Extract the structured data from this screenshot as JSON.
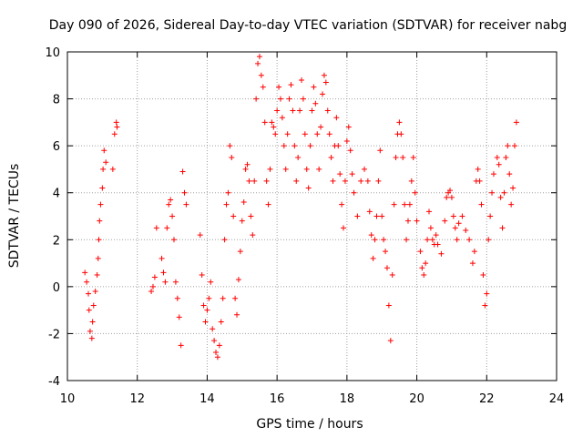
{
  "chart_data": {
    "type": "scatter",
    "title": "Day 090 of 2026, Sidereal Day-to-day VTEC variation (SDTVAR) for receiver nabg",
    "xlabel": "GPS time / hours",
    "ylabel": "SDTVAR / TECUs",
    "xlim": [
      10,
      24
    ],
    "ylim": [
      -4,
      10
    ],
    "x_ticks": [
      10,
      12,
      14,
      16,
      18,
      20,
      22,
      24
    ],
    "y_ticks": [
      -4,
      -2,
      0,
      2,
      4,
      6,
      8,
      10
    ],
    "grid": true,
    "marker": "+",
    "series": [
      {
        "name": "SDTVAR",
        "color": "#ff0000",
        "points": [
          [
            10.5,
            0.6
          ],
          [
            10.55,
            0.2
          ],
          [
            10.6,
            -0.3
          ],
          [
            10.62,
            -1.0
          ],
          [
            10.65,
            -1.9
          ],
          [
            10.7,
            -2.2
          ],
          [
            10.72,
            -1.5
          ],
          [
            10.75,
            -0.8
          ],
          [
            10.8,
            -0.2
          ],
          [
            10.85,
            0.5
          ],
          [
            10.88,
            1.2
          ],
          [
            10.9,
            2.0
          ],
          [
            10.92,
            2.8
          ],
          [
            10.95,
            3.5
          ],
          [
            11.0,
            4.2
          ],
          [
            11.02,
            5.0
          ],
          [
            11.05,
            5.8
          ],
          [
            11.1,
            5.3
          ],
          [
            11.3,
            5.0
          ],
          [
            11.35,
            6.5
          ],
          [
            11.4,
            7.0
          ],
          [
            11.42,
            6.8
          ],
          [
            12.4,
            -0.2
          ],
          [
            12.45,
            0.0
          ],
          [
            12.5,
            0.4
          ],
          [
            12.55,
            2.5
          ],
          [
            12.7,
            1.2
          ],
          [
            12.75,
            0.6
          ],
          [
            12.8,
            0.2
          ],
          [
            12.85,
            2.5
          ],
          [
            12.9,
            3.5
          ],
          [
            12.95,
            3.7
          ],
          [
            13.0,
            3.0
          ],
          [
            13.05,
            2.0
          ],
          [
            13.1,
            0.2
          ],
          [
            13.15,
            -0.5
          ],
          [
            13.2,
            -1.3
          ],
          [
            13.25,
            -2.5
          ],
          [
            13.3,
            4.9
          ],
          [
            13.35,
            4.0
          ],
          [
            13.4,
            3.5
          ],
          [
            13.8,
            2.2
          ],
          [
            13.85,
            0.5
          ],
          [
            13.9,
            -0.8
          ],
          [
            13.95,
            -1.5
          ],
          [
            14.0,
            -1.0
          ],
          [
            14.05,
            -0.5
          ],
          [
            14.1,
            0.2
          ],
          [
            14.15,
            -1.8
          ],
          [
            14.2,
            -2.3
          ],
          [
            14.25,
            -2.8
          ],
          [
            14.3,
            -3.0
          ],
          [
            14.35,
            -2.5
          ],
          [
            14.4,
            -1.5
          ],
          [
            14.45,
            -0.5
          ],
          [
            14.5,
            2.0
          ],
          [
            14.55,
            3.5
          ],
          [
            14.6,
            4.0
          ],
          [
            14.65,
            6.0
          ],
          [
            14.7,
            5.5
          ],
          [
            14.75,
            3.0
          ],
          [
            14.8,
            -0.5
          ],
          [
            14.85,
            -1.2
          ],
          [
            14.9,
            0.3
          ],
          [
            14.95,
            1.5
          ],
          [
            15.0,
            2.8
          ],
          [
            15.05,
            3.6
          ],
          [
            15.1,
            5.0
          ],
          [
            15.15,
            5.2
          ],
          [
            15.2,
            4.5
          ],
          [
            15.25,
            3.0
          ],
          [
            15.3,
            2.2
          ],
          [
            15.35,
            4.5
          ],
          [
            15.4,
            8.0
          ],
          [
            15.45,
            9.5
          ],
          [
            15.5,
            9.8
          ],
          [
            15.55,
            9.0
          ],
          [
            15.6,
            8.5
          ],
          [
            15.65,
            7.0
          ],
          [
            15.7,
            4.5
          ],
          [
            15.75,
            3.5
          ],
          [
            15.8,
            5.0
          ],
          [
            15.85,
            7.0
          ],
          [
            15.9,
            6.8
          ],
          [
            15.95,
            6.5
          ],
          [
            16.0,
            7.5
          ],
          [
            16.05,
            8.5
          ],
          [
            16.1,
            8.0
          ],
          [
            16.15,
            7.2
          ],
          [
            16.2,
            6.0
          ],
          [
            16.25,
            5.0
          ],
          [
            16.3,
            6.5
          ],
          [
            16.35,
            8.0
          ],
          [
            16.4,
            8.6
          ],
          [
            16.45,
            7.5
          ],
          [
            16.5,
            6.0
          ],
          [
            16.55,
            4.5
          ],
          [
            16.6,
            5.5
          ],
          [
            16.65,
            7.5
          ],
          [
            16.7,
            8.8
          ],
          [
            16.75,
            8.0
          ],
          [
            16.8,
            6.5
          ],
          [
            16.85,
            5.0
          ],
          [
            16.9,
            4.2
          ],
          [
            16.95,
            6.0
          ],
          [
            17.0,
            7.5
          ],
          [
            17.05,
            8.5
          ],
          [
            17.1,
            7.8
          ],
          [
            17.15,
            6.5
          ],
          [
            17.2,
            5.0
          ],
          [
            17.25,
            6.8
          ],
          [
            17.3,
            8.2
          ],
          [
            17.35,
            9.0
          ],
          [
            17.4,
            8.7
          ],
          [
            17.45,
            7.5
          ],
          [
            17.5,
            6.5
          ],
          [
            17.55,
            5.5
          ],
          [
            17.6,
            4.5
          ],
          [
            17.65,
            6.0
          ],
          [
            17.7,
            7.2
          ],
          [
            17.75,
            6.0
          ],
          [
            17.8,
            4.8
          ],
          [
            17.85,
            3.5
          ],
          [
            17.9,
            2.5
          ],
          [
            17.95,
            4.5
          ],
          [
            18.0,
            6.2
          ],
          [
            18.05,
            6.8
          ],
          [
            18.1,
            5.8
          ],
          [
            18.15,
            4.8
          ],
          [
            18.2,
            4.0
          ],
          [
            18.3,
            3.0
          ],
          [
            18.4,
            4.5
          ],
          [
            18.5,
            5.0
          ],
          [
            18.6,
            4.5
          ],
          [
            18.65,
            3.2
          ],
          [
            18.7,
            2.2
          ],
          [
            18.75,
            1.2
          ],
          [
            18.8,
            2.0
          ],
          [
            18.85,
            3.0
          ],
          [
            18.9,
            4.5
          ],
          [
            18.95,
            5.8
          ],
          [
            19.0,
            3.0
          ],
          [
            19.05,
            2.0
          ],
          [
            19.1,
            1.5
          ],
          [
            19.15,
            0.8
          ],
          [
            19.2,
            -0.8
          ],
          [
            19.25,
            -2.3
          ],
          [
            19.3,
            0.5
          ],
          [
            19.35,
            3.5
          ],
          [
            19.4,
            5.5
          ],
          [
            19.45,
            6.5
          ],
          [
            19.5,
            7.0
          ],
          [
            19.55,
            6.5
          ],
          [
            19.6,
            5.5
          ],
          [
            19.65,
            3.5
          ],
          [
            19.7,
            2.0
          ],
          [
            19.75,
            2.8
          ],
          [
            19.8,
            3.5
          ],
          [
            19.85,
            4.5
          ],
          [
            19.9,
            5.5
          ],
          [
            19.95,
            4.0
          ],
          [
            20.0,
            2.8
          ],
          [
            20.1,
            1.5
          ],
          [
            20.15,
            0.8
          ],
          [
            20.2,
            0.5
          ],
          [
            20.25,
            1.0
          ],
          [
            20.3,
            2.0
          ],
          [
            20.35,
            3.2
          ],
          [
            20.4,
            2.5
          ],
          [
            20.45,
            2.0
          ],
          [
            20.5,
            1.8
          ],
          [
            20.55,
            2.2
          ],
          [
            20.6,
            1.8
          ],
          [
            20.7,
            1.4
          ],
          [
            20.8,
            2.8
          ],
          [
            20.85,
            3.8
          ],
          [
            20.9,
            4.0
          ],
          [
            20.95,
            4.1
          ],
          [
            21.0,
            3.8
          ],
          [
            21.05,
            3.0
          ],
          [
            21.1,
            2.5
          ],
          [
            21.15,
            2.0
          ],
          [
            21.2,
            2.7
          ],
          [
            21.3,
            3.0
          ],
          [
            21.4,
            2.4
          ],
          [
            21.5,
            2.0
          ],
          [
            21.6,
            1.0
          ],
          [
            21.65,
            1.5
          ],
          [
            21.7,
            4.5
          ],
          [
            21.75,
            5.0
          ],
          [
            21.8,
            4.5
          ],
          [
            21.85,
            3.5
          ],
          [
            21.9,
            0.5
          ],
          [
            21.95,
            -0.8
          ],
          [
            22.0,
            -0.3
          ],
          [
            22.05,
            2.0
          ],
          [
            22.1,
            3.0
          ],
          [
            22.15,
            4.0
          ],
          [
            22.2,
            4.8
          ],
          [
            22.3,
            5.5
          ],
          [
            22.35,
            5.2
          ],
          [
            22.4,
            3.8
          ],
          [
            22.45,
            2.5
          ],
          [
            22.5,
            4.0
          ],
          [
            22.55,
            5.5
          ],
          [
            22.6,
            6.0
          ],
          [
            22.65,
            4.8
          ],
          [
            22.7,
            3.5
          ],
          [
            22.75,
            4.2
          ],
          [
            22.8,
            6.0
          ],
          [
            22.85,
            7.0
          ]
        ]
      }
    ]
  }
}
